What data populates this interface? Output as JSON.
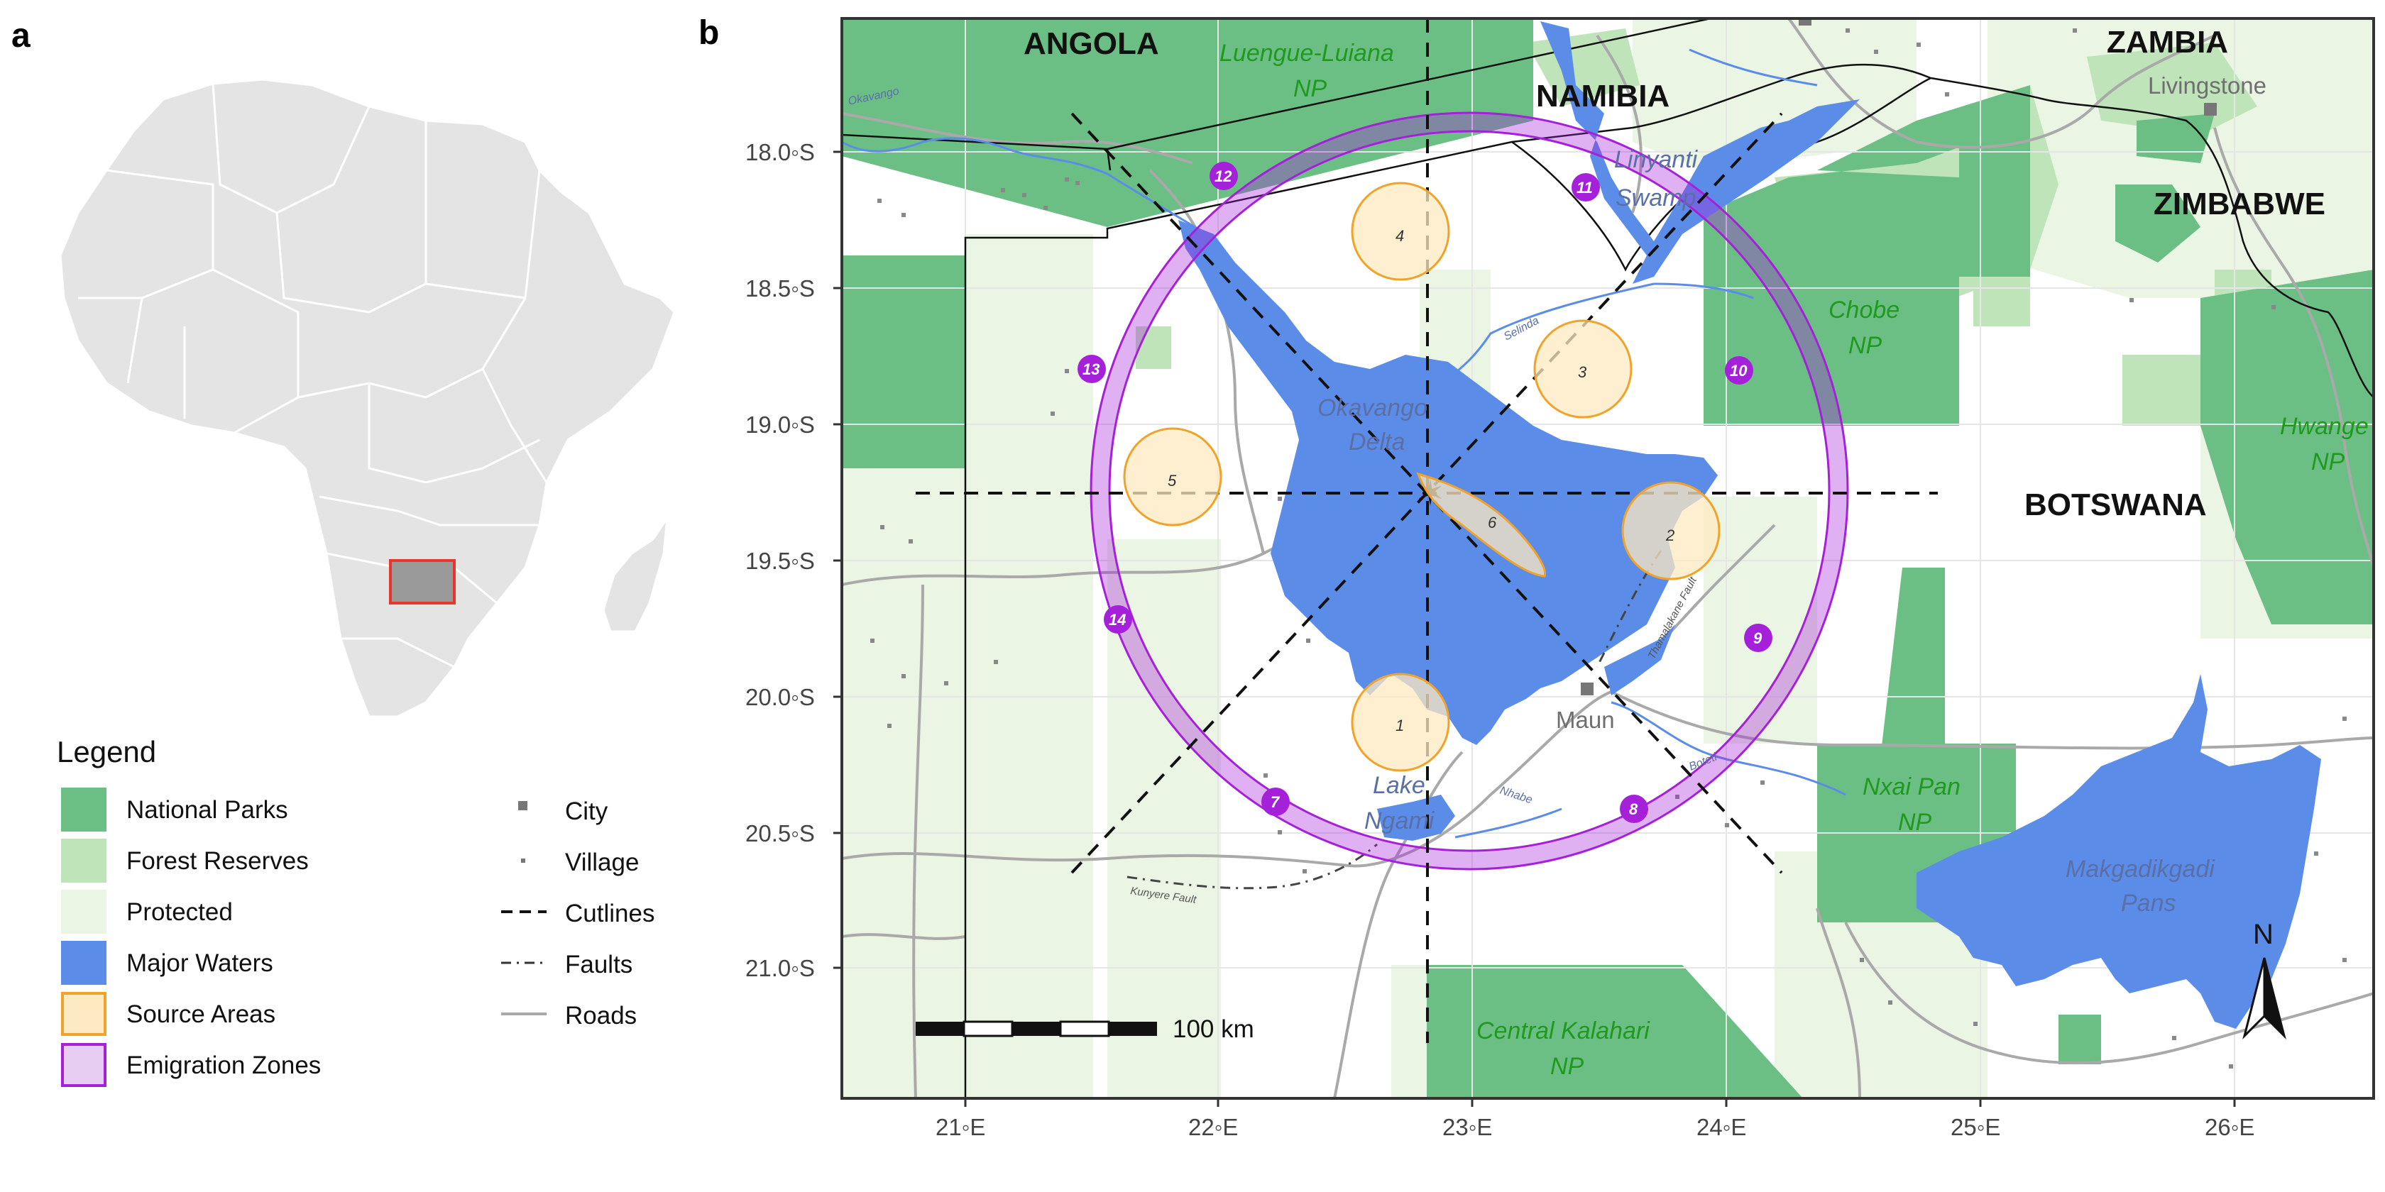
{
  "panels": {
    "a_label": "a",
    "b_label": "b"
  },
  "legend": {
    "title": "Legend",
    "areas": [
      {
        "label": "National Parks",
        "color": "#6cbf84"
      },
      {
        "label": "Forest Reserves",
        "color": "#bfe4b9"
      },
      {
        "label": "Protected",
        "color": "#eaf5e4"
      },
      {
        "label": "Major Waters",
        "color": "#5b8de8"
      },
      {
        "label": "Source Areas",
        "color": "#fde9c2",
        "stroke": "#f0a32a"
      },
      {
        "label": "Emigration Zones",
        "color": "#e8cdf3",
        "stroke": "#a520d9"
      }
    ],
    "lines": [
      {
        "label": "City",
        "symbol": "square-large"
      },
      {
        "label": "Village",
        "symbol": "square-small"
      },
      {
        "label": "Cutlines",
        "symbol": "dashed"
      },
      {
        "label": "Faults",
        "symbol": "dash-dot"
      },
      {
        "label": "Roads",
        "symbol": "solid-gray"
      }
    ]
  },
  "axes": {
    "y_ticks": [
      "18.0◦S",
      "18.5◦S",
      "19.0◦S",
      "19.5◦S",
      "20.0◦S",
      "20.5◦S",
      "21.0◦S"
    ],
    "x_ticks": [
      "21◦E",
      "22◦E",
      "23◦E",
      "24◦E",
      "25◦E",
      "26◦E"
    ]
  },
  "countries": {
    "angola": "ANGOLA",
    "namibia": "NAMIBIA",
    "zambia": "ZAMBIA",
    "zimbabwe": "ZIMBABWE",
    "botswana": "BOTSWANA"
  },
  "parks": {
    "luengue_1": "Luengue-Luiana",
    "luengue_2": "NP",
    "chobe_1": "Chobe",
    "chobe_2": "NP",
    "hwange_1": "Hwange",
    "hwange_2": "NP",
    "nxai_1": "Nxai Pan",
    "nxai_2": "NP",
    "ck_1": "Central Kalahari",
    "ck_2": "NP"
  },
  "waters": {
    "linyanti_1": "Linyanti",
    "linyanti_2": "Swamp",
    "okavango_1": "Okavango",
    "okavango_2": "Delta",
    "ngami_1": "Lake",
    "ngami_2": "Ngami",
    "makgadikgadi_1": "Makgadikgadi",
    "makgadikgadi_2": "Pans",
    "okavango_river": "Okavango",
    "selinda": "Selinda",
    "nhabe": "Nhabe",
    "boteti": "Boteti"
  },
  "towns": {
    "livingstone": "Livingstone",
    "maun": "Maun"
  },
  "faults": {
    "kunyere": "Kunyere Fault",
    "thamalakane": "Thamalakane Fault"
  },
  "source_areas": [
    "1",
    "2",
    "3",
    "4",
    "5",
    "6"
  ],
  "emigration_zones": [
    "7",
    "8",
    "9",
    "10",
    "11",
    "12",
    "13",
    "14"
  ],
  "scale_bar": {
    "label": "100 km"
  },
  "north_arrow": {
    "label": "N"
  }
}
